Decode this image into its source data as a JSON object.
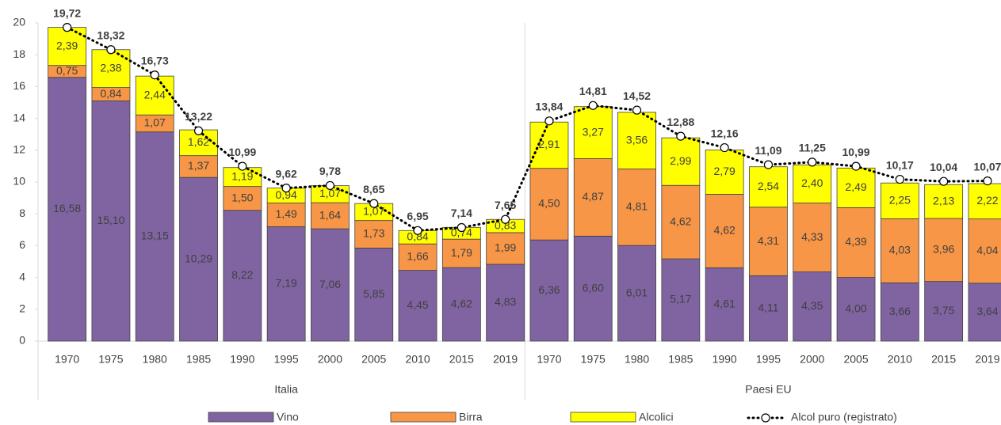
{
  "chart_data": {
    "type": "stacked_bar",
    "categories": [
      "1970",
      "1975",
      "1980",
      "1985",
      "1990",
      "1995",
      "2000",
      "2005",
      "2010",
      "2015",
      "2019",
      "1970",
      "1975",
      "1980",
      "1985",
      "1990",
      "1995",
      "2000",
      "2005",
      "2010",
      "2015",
      "2019"
    ],
    "group_labels": [
      "Italia",
      "Paesi EU"
    ],
    "ylim": [
      0,
      20
    ],
    "yticks": [
      0,
      2,
      4,
      6,
      8,
      10,
      12,
      14,
      16,
      18,
      20
    ],
    "series": [
      {
        "name": "Vino",
        "color": "#8064a2",
        "values": [
          16.58,
          15.1,
          13.15,
          10.29,
          8.22,
          7.19,
          7.06,
          5.85,
          4.45,
          4.62,
          4.83,
          6.36,
          6.6,
          6.01,
          5.17,
          4.61,
          4.11,
          4.35,
          4.0,
          3.66,
          3.75,
          3.64
        ],
        "value_labels": [
          "16,58",
          "15,10",
          "13,15",
          "10,29",
          "8,22",
          "7,19",
          "7,06",
          "5,85",
          "4,45",
          "4,62",
          "4,83",
          "6,36",
          "6,60",
          "6,01",
          "5,17",
          "4,61",
          "4,11",
          "4,35",
          "4,00",
          "3,66",
          "3,75",
          "3,64"
        ]
      },
      {
        "name": "Birra",
        "color": "#f79646",
        "values": [
          0.75,
          0.84,
          1.07,
          1.37,
          1.5,
          1.49,
          1.64,
          1.73,
          1.66,
          1.79,
          1.99,
          4.5,
          4.87,
          4.81,
          4.62,
          4.62,
          4.31,
          4.33,
          4.39,
          4.03,
          3.96,
          4.04
        ],
        "value_labels": [
          "0,75",
          "0,84",
          "1,07",
          "1,37",
          "1,50",
          "1,49",
          "1,64",
          "1,73",
          "1,66",
          "1,79",
          "1,99",
          "4,50",
          "4,87",
          "4,81",
          "4,62",
          "4,62",
          "4,31",
          "4,33",
          "4,39",
          "4,03",
          "3,96",
          "4,04"
        ]
      },
      {
        "name": "Alcolici",
        "color": "#ffff00",
        "values": [
          2.39,
          2.38,
          2.44,
          1.62,
          1.19,
          0.94,
          1.07,
          1.07,
          0.84,
          0.74,
          0.83,
          2.91,
          3.27,
          3.56,
          2.99,
          2.79,
          2.54,
          2.4,
          2.49,
          2.25,
          2.13,
          2.22
        ],
        "value_labels": [
          "2,39",
          "2,38",
          "2,44",
          "1,62",
          "1,19",
          "0,94",
          "1,07",
          "1,07",
          "0,84",
          "0,74",
          "0,83",
          "2,91",
          "3,27",
          "3,56",
          "2,99",
          "2,79",
          "2,54",
          "2,40",
          "2,49",
          "2,25",
          "2,13",
          "2,22"
        ]
      }
    ],
    "line": {
      "name": "Alcol puro (registrato)",
      "color": "#000000",
      "values": [
        19.72,
        18.32,
        16.73,
        13.22,
        10.99,
        9.62,
        9.78,
        8.65,
        6.95,
        7.14,
        7.65,
        13.84,
        14.81,
        14.52,
        12.88,
        12.16,
        11.09,
        11.25,
        10.99,
        10.17,
        10.04,
        10.07
      ],
      "value_labels": [
        "19,72",
        "18,32",
        "16,73",
        "13,22",
        "10,99",
        "9,62",
        "9,78",
        "8,65",
        "6,95",
        "7,14",
        "7,65",
        "13,84",
        "14,81",
        "14,52",
        "12,88",
        "12,16",
        "11,09",
        "11,25",
        "10,99",
        "10,17",
        "10,04",
        "10,07"
      ]
    }
  }
}
